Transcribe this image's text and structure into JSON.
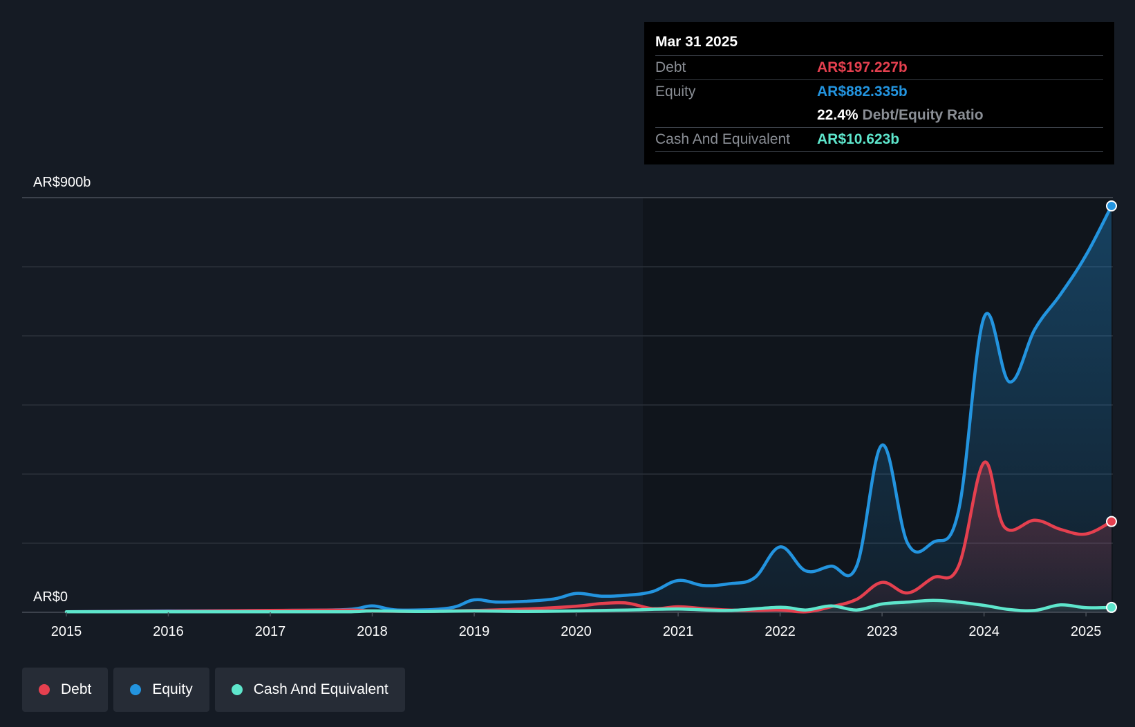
{
  "chart_data": {
    "type": "area",
    "y_axis": {
      "top_label": "AR$900b",
      "bottom_label": "AR$0",
      "ylim": [
        0,
        900
      ]
    },
    "x_axis": {
      "ticks": [
        "2015",
        "2016",
        "2017",
        "2018",
        "2019",
        "2020",
        "2021",
        "2022",
        "2023",
        "2024",
        "2025"
      ],
      "xlim": [
        2015.0,
        2025.25
      ]
    },
    "grid": true,
    "series": [
      {
        "name": "Debt",
        "color": "#e5404f",
        "points": [
          [
            2015.0,
            1
          ],
          [
            2016.0,
            2
          ],
          [
            2017.0,
            4
          ],
          [
            2017.75,
            5
          ],
          [
            2018.0,
            3
          ],
          [
            2018.5,
            2
          ],
          [
            2019.0,
            4
          ],
          [
            2019.5,
            7
          ],
          [
            2020.0,
            13
          ],
          [
            2020.25,
            19
          ],
          [
            2020.5,
            20
          ],
          [
            2020.75,
            8
          ],
          [
            2021.0,
            12
          ],
          [
            2021.25,
            8
          ],
          [
            2021.5,
            5
          ],
          [
            2021.75,
            4
          ],
          [
            2022.0,
            5
          ],
          [
            2022.25,
            1
          ],
          [
            2022.5,
            12
          ],
          [
            2022.75,
            28
          ],
          [
            2023.0,
            65
          ],
          [
            2023.25,
            42
          ],
          [
            2023.5,
            75
          ],
          [
            2023.75,
            100
          ],
          [
            2024.0,
            325
          ],
          [
            2024.2,
            185
          ],
          [
            2024.5,
            200
          ],
          [
            2024.75,
            180
          ],
          [
            2025.0,
            170
          ],
          [
            2025.25,
            197
          ]
        ]
      },
      {
        "name": "Equity",
        "color": "#2394df",
        "points": [
          [
            2015.0,
            1
          ],
          [
            2016.0,
            3
          ],
          [
            2017.0,
            4
          ],
          [
            2017.75,
            6
          ],
          [
            2018.0,
            14
          ],
          [
            2018.25,
            5
          ],
          [
            2018.75,
            9
          ],
          [
            2019.0,
            27
          ],
          [
            2019.25,
            22
          ],
          [
            2019.75,
            28
          ],
          [
            2020.0,
            41
          ],
          [
            2020.25,
            35
          ],
          [
            2020.5,
            37
          ],
          [
            2020.75,
            45
          ],
          [
            2021.0,
            69
          ],
          [
            2021.25,
            58
          ],
          [
            2021.5,
            62
          ],
          [
            2021.75,
            75
          ],
          [
            2022.0,
            142
          ],
          [
            2022.25,
            90
          ],
          [
            2022.5,
            100
          ],
          [
            2022.75,
            100
          ],
          [
            2023.0,
            363
          ],
          [
            2023.25,
            150
          ],
          [
            2023.5,
            152
          ],
          [
            2023.75,
            220
          ],
          [
            2024.0,
            640
          ],
          [
            2024.25,
            500
          ],
          [
            2024.5,
            615
          ],
          [
            2024.75,
            690
          ],
          [
            2025.0,
            775
          ],
          [
            2025.25,
            882
          ]
        ]
      },
      {
        "name": "Cash And Equivalent",
        "color": "#5ee6cc",
        "points": [
          [
            2015.0,
            1
          ],
          [
            2016.0,
            1
          ],
          [
            2017.0,
            1
          ],
          [
            2017.75,
            1
          ],
          [
            2018.0,
            3
          ],
          [
            2018.5,
            2
          ],
          [
            2019.0,
            3
          ],
          [
            2019.5,
            2
          ],
          [
            2020.0,
            3
          ],
          [
            2020.5,
            5
          ],
          [
            2021.0,
            7
          ],
          [
            2021.5,
            4
          ],
          [
            2022.0,
            11
          ],
          [
            2022.25,
            5
          ],
          [
            2022.5,
            14
          ],
          [
            2022.75,
            5
          ],
          [
            2023.0,
            18
          ],
          [
            2023.25,
            22
          ],
          [
            2023.5,
            26
          ],
          [
            2023.75,
            22
          ],
          [
            2024.0,
            15
          ],
          [
            2024.25,
            6
          ],
          [
            2024.5,
            4
          ],
          [
            2024.75,
            16
          ],
          [
            2025.0,
            10
          ],
          [
            2025.25,
            10.623
          ]
        ]
      }
    ]
  },
  "tooltip": {
    "date": "Mar 31 2025",
    "debt_label": "Debt",
    "debt_value": "AR$197.227b",
    "equity_label": "Equity",
    "equity_value": "AR$882.335b",
    "ratio_value": "22.4%",
    "ratio_label": "Debt/Equity Ratio",
    "cash_label": "Cash And Equivalent",
    "cash_value": "AR$10.623b"
  },
  "legend": {
    "debt": "Debt",
    "equity": "Equity",
    "cash": "Cash And Equivalent"
  },
  "colors": {
    "debt": "#e5404f",
    "equity": "#2394df",
    "cash": "#5ee6cc",
    "background": "#151b24",
    "plot_highlight": "#10151c"
  }
}
